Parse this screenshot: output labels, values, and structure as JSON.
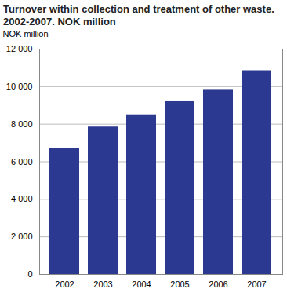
{
  "chart_data": {
    "type": "bar",
    "title": "Turnover within collection and treatment of other waste. 2002-2007. NOK million",
    "y_label": "NOK million",
    "categories": [
      "2002",
      "2003",
      "2004",
      "2005",
      "2006",
      "2007"
    ],
    "values": [
      6700,
      7850,
      8500,
      9200,
      9850,
      10850
    ],
    "color": "#2b3990",
    "ylim": [
      0,
      12000
    ],
    "yticks": [
      0,
      {
        "value": 2000,
        "label": "2 000"
      },
      {
        "value": 4000,
        "label": "4 000"
      },
      {
        "value": 6000,
        "label": "6 000"
      },
      {
        "value": 8000,
        "label": "8 000"
      },
      {
        "value": 10000,
        "label": "10 000"
      },
      {
        "value": 12000,
        "label": "12 000"
      }
    ],
    "grid": true
  }
}
